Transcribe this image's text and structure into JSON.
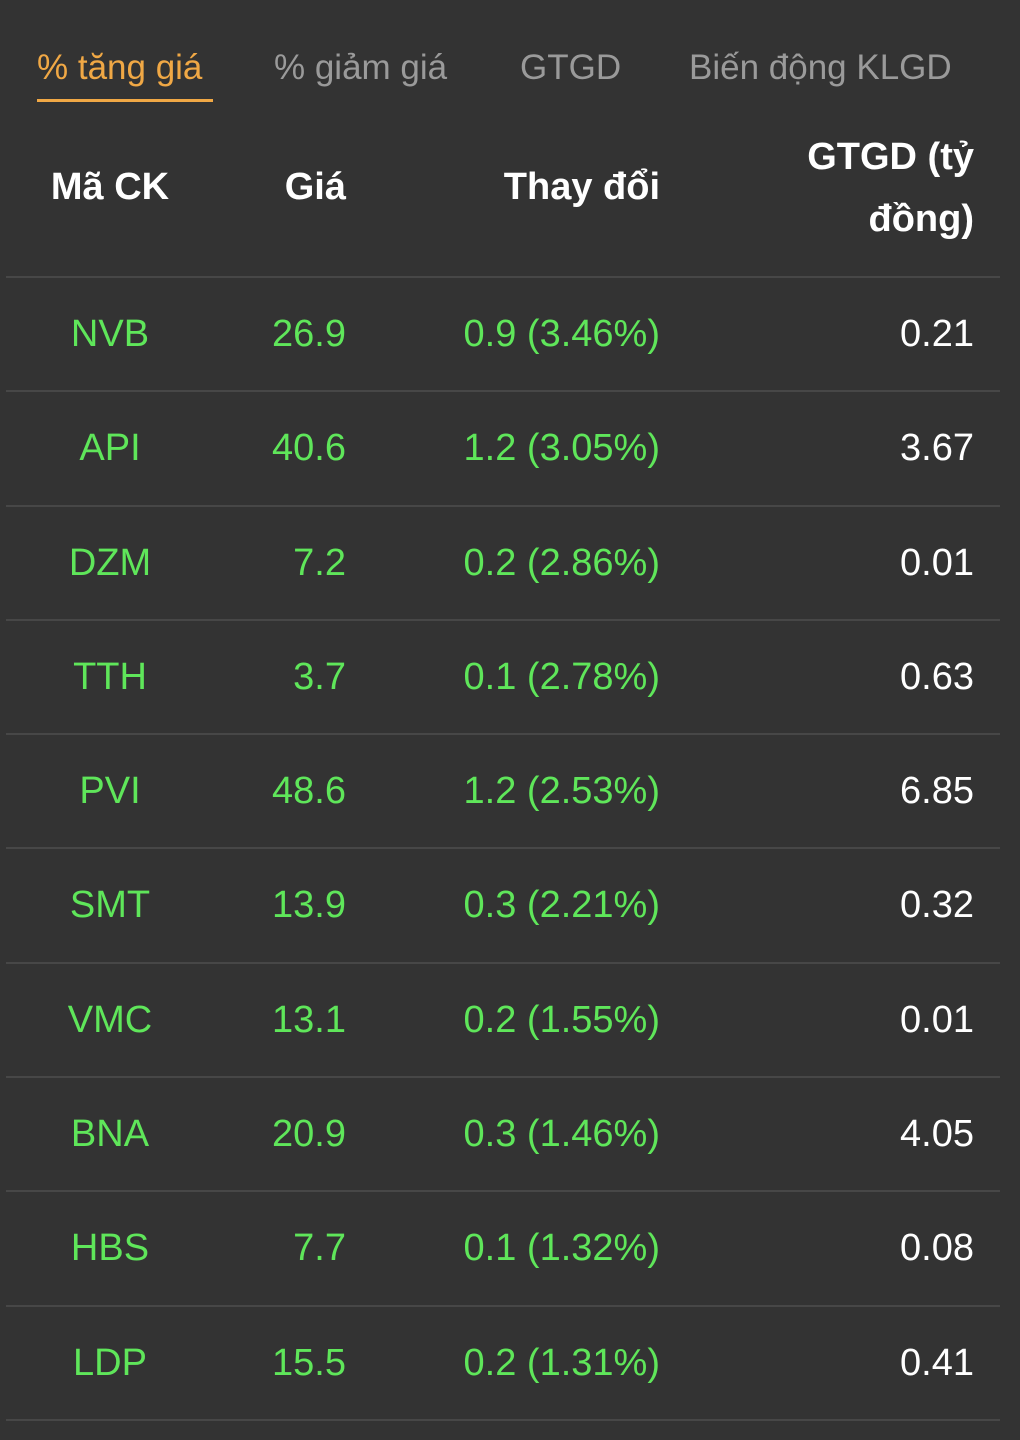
{
  "tabs": [
    {
      "label": "% tăng giá",
      "active": true
    },
    {
      "label": "% giảm giá",
      "active": false
    },
    {
      "label": "GTGD",
      "active": false
    },
    {
      "label": "Biến động KLGD",
      "active": false
    }
  ],
  "colors": {
    "background": "#333333",
    "active_tab": "#f0a845",
    "inactive_tab": "#9a9a9a",
    "up": "#5fe65a",
    "text": "#ffffff",
    "divider": "#474747"
  },
  "table": {
    "headers": {
      "code": "Mã CK",
      "price": "Giá",
      "change": "Thay đổi",
      "value": "GTGD (tỷ đồng)"
    },
    "rows": [
      {
        "code": "NVB",
        "price": "26.9",
        "change": "0.9 (3.46%)",
        "value": "0.21"
      },
      {
        "code": "API",
        "price": "40.6",
        "change": "1.2 (3.05%)",
        "value": "3.67"
      },
      {
        "code": "DZM",
        "price": "7.2",
        "change": "0.2 (2.86%)",
        "value": "0.01"
      },
      {
        "code": "TTH",
        "price": "3.7",
        "change": "0.1 (2.78%)",
        "value": "0.63"
      },
      {
        "code": "PVI",
        "price": "48.6",
        "change": "1.2 (2.53%)",
        "value": "6.85"
      },
      {
        "code": "SMT",
        "price": "13.9",
        "change": "0.3 (2.21%)",
        "value": "0.32"
      },
      {
        "code": "VMC",
        "price": "13.1",
        "change": "0.2 (1.55%)",
        "value": "0.01"
      },
      {
        "code": "BNA",
        "price": "20.9",
        "change": "0.3 (1.46%)",
        "value": "4.05"
      },
      {
        "code": "HBS",
        "price": "7.7",
        "change": "0.1 (1.32%)",
        "value": "0.08"
      },
      {
        "code": "LDP",
        "price": "15.5",
        "change": "0.2 (1.31%)",
        "value": "0.41"
      }
    ]
  }
}
